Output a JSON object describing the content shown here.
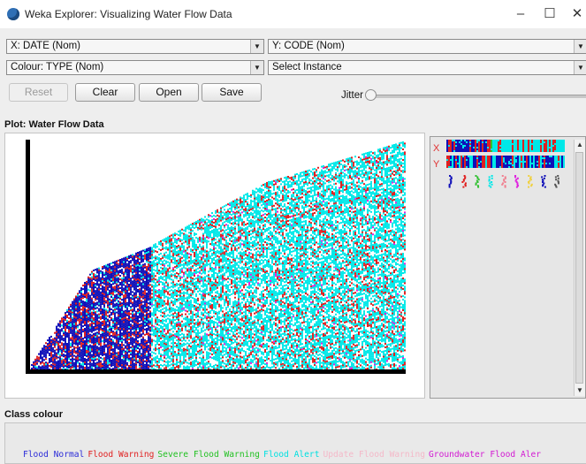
{
  "window": {
    "title": "Weka Explorer: Visualizing Water Flow Data",
    "controls": {
      "minimize": "–",
      "maximize": "☐",
      "close": "✕"
    }
  },
  "toolbar": {
    "x_axis": "X: DATE (Nom)",
    "y_axis": "Y: CODE (Nom)",
    "colour": "Colour: TYPE (Nom)",
    "instance": "Select Instance",
    "dropdown_arrow": "▼",
    "reset_label": "Reset",
    "clear_label": "Clear",
    "open_label": "Open",
    "save_label": "Save",
    "jitter_label": "Jitter",
    "jitter_level": 0
  },
  "plot": {
    "title": "Plot: Water Flow Data",
    "attribute_x_marker": "X",
    "attribute_y_marker": "Y"
  },
  "class_colour": {
    "heading": "Class colour",
    "classes": [
      {
        "label": "Flood Normal",
        "color": "#2b2bd8"
      },
      {
        "label": "Flood Warning",
        "color": "#e02020"
      },
      {
        "label": "Severe Flood Warning",
        "color": "#22c122"
      },
      {
        "label": "Flood Alert",
        "color": "#00e0e0"
      },
      {
        "label": "Update Flood Warning",
        "color": "#f4b8c8"
      },
      {
        "label": "Groundwater Flood Aler",
        "color": "#d21ad2"
      }
    ]
  },
  "colors": {
    "flood_normal": "#1010b8",
    "flood_warning": "#e02020",
    "flood_alert": "#00e8e8",
    "groundwater": "#e020e0",
    "severe": "#30c030"
  }
}
